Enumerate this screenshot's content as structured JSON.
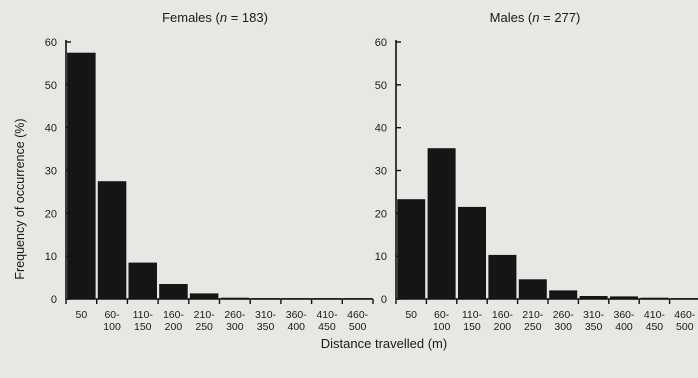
{
  "figure": {
    "ylabel": "Frequency of occurrence (%)",
    "xlabel": "Distance travelled (m)"
  },
  "chart_data": [
    {
      "type": "bar",
      "title": "Females (n = 183)",
      "title_prefix": "Females (",
      "title_n": "n",
      "title_suffix": " = 183)",
      "ylabel": "Frequency of occurrence (%)",
      "xlabel": "Distance travelled (m)",
      "ylim": [
        0,
        60
      ],
      "yticks": [
        0,
        10,
        20,
        30,
        40,
        50,
        60
      ],
      "categories": [
        {
          "line1": "50",
          "line2": ""
        },
        {
          "line1": "60-",
          "line2": "100"
        },
        {
          "line1": "110-",
          "line2": "150"
        },
        {
          "line1": "160-",
          "line2": "200"
        },
        {
          "line1": "210-",
          "line2": "250"
        },
        {
          "line1": "260-",
          "line2": "300"
        },
        {
          "line1": "310-",
          "line2": "350"
        },
        {
          "line1": "360-",
          "line2": "400"
        },
        {
          "line1": "410-",
          "line2": "450"
        },
        {
          "line1": "460-",
          "line2": "500"
        }
      ],
      "values": [
        57.5,
        27.5,
        8.5,
        3.5,
        1.3,
        0.3,
        0.2,
        0.2,
        0.2,
        0.2
      ],
      "bar_color": "#151515",
      "grid": false
    },
    {
      "type": "bar",
      "title": "Males (n = 277)",
      "title_prefix": "Males (",
      "title_n": "n",
      "title_suffix": " = 277)",
      "ylabel": "Frequency of occurrence (%)",
      "xlabel": "Distance travelled (m)",
      "ylim": [
        0,
        60
      ],
      "yticks": [
        0,
        10,
        20,
        30,
        40,
        50,
        60
      ],
      "categories": [
        {
          "line1": "50",
          "line2": ""
        },
        {
          "line1": "60-",
          "line2": "100"
        },
        {
          "line1": "110-",
          "line2": "150"
        },
        {
          "line1": "160-",
          "line2": "200"
        },
        {
          "line1": "210-",
          "line2": "250"
        },
        {
          "line1": "260-",
          "line2": "300"
        },
        {
          "line1": "310-",
          "line2": "350"
        },
        {
          "line1": "360-",
          "line2": "400"
        },
        {
          "line1": "410-",
          "line2": "450"
        },
        {
          "line1": "460-",
          "line2": "500"
        }
      ],
      "values": [
        23.3,
        35.2,
        21.5,
        10.3,
        4.6,
        2.0,
        0.7,
        0.6,
        0.3,
        0.2
      ],
      "bar_color": "#151515",
      "grid": false
    }
  ]
}
